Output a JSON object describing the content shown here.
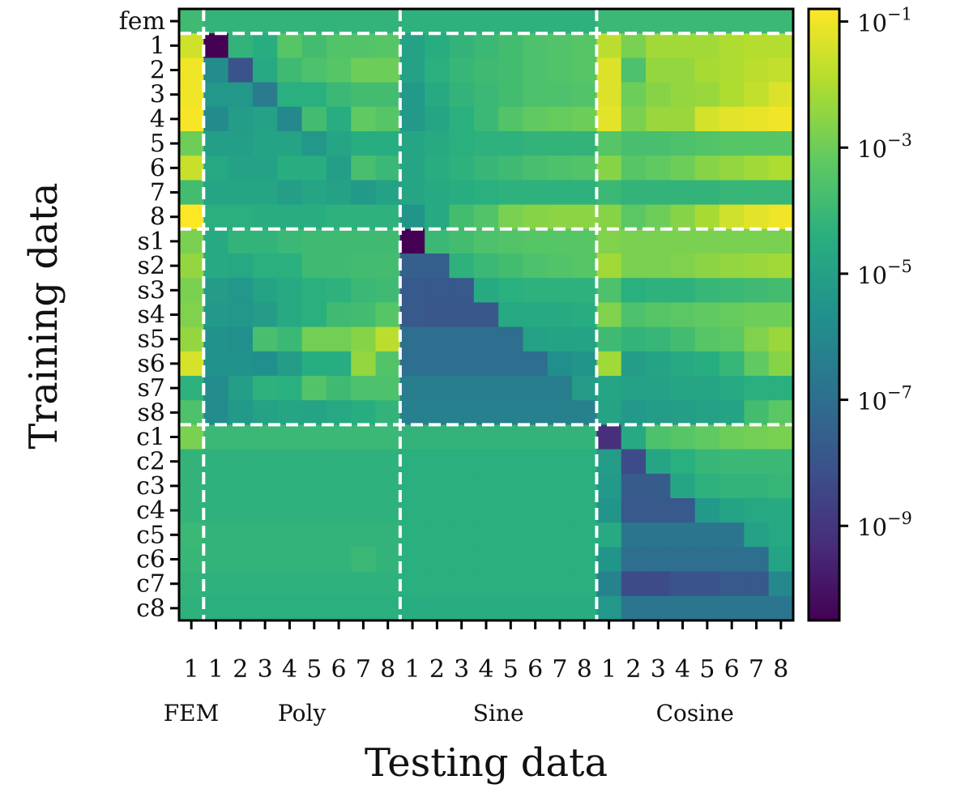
{
  "chart_data": {
    "type": "heatmap",
    "title": "",
    "xlabel": "Testing data",
    "ylabel": "Training data",
    "colormap": "viridis",
    "scale": "log10",
    "color_range_log10": [
      -10.5,
      -0.8
    ],
    "colorbar_ticks": [
      {
        "base": "10",
        "exp": "−1",
        "log": -1
      },
      {
        "base": "10",
        "exp": "−3",
        "log": -3
      },
      {
        "base": "10",
        "exp": "−5",
        "log": -5
      },
      {
        "base": "10",
        "exp": "−7",
        "log": -7
      },
      {
        "base": "10",
        "exp": "−9",
        "log": -9
      }
    ],
    "row_labels": [
      "fem",
      "1",
      "2",
      "3",
      "4",
      "5",
      "6",
      "7",
      "8",
      "s1",
      "s2",
      "s3",
      "s4",
      "s5",
      "s6",
      "s7",
      "s8",
      "c1",
      "c2",
      "c3",
      "c4",
      "c5",
      "c6",
      "c7",
      "c8"
    ],
    "col_labels": [
      "1",
      "1",
      "2",
      "3",
      "4",
      "5",
      "6",
      "7",
      "8",
      "1",
      "2",
      "3",
      "4",
      "5",
      "6",
      "7",
      "8",
      "1",
      "2",
      "3",
      "4",
      "5",
      "6",
      "7",
      "8"
    ],
    "groups": [
      "FEM",
      "Poly",
      "Sine",
      "Cosine"
    ],
    "matrix_log10": [
      [
        -3.9,
        -4.2,
        -4.2,
        -4.2,
        -4.2,
        -4.2,
        -4.2,
        -4.2,
        -4.2,
        -4.3,
        -4.3,
        -4.3,
        -4.3,
        -4.3,
        -4.3,
        -4.3,
        -4.3,
        -4.0,
        -4.0,
        -4.0,
        -4.0,
        -4.0,
        -4.0,
        -4.0,
        -4.0
      ],
      [
        -1.5,
        -10.5,
        -4.2,
        -4.5,
        -3.4,
        -3.8,
        -3.5,
        -3.5,
        -3.4,
        -5.0,
        -4.5,
        -4.2,
        -4.0,
        -3.8,
        -3.6,
        -3.5,
        -3.4,
        -1.8,
        -2.8,
        -2.2,
        -2.2,
        -2.2,
        -2.0,
        -1.9,
        -1.9
      ],
      [
        -1.0,
        -5.8,
        -8.0,
        -4.6,
        -3.9,
        -3.6,
        -3.4,
        -3.0,
        -3.0,
        -5.0,
        -4.4,
        -4.1,
        -3.9,
        -3.8,
        -3.6,
        -3.5,
        -3.4,
        -1.3,
        -3.6,
        -2.4,
        -2.4,
        -2.1,
        -2.0,
        -1.8,
        -1.7
      ],
      [
        -1.0,
        -5.4,
        -5.4,
        -6.5,
        -4.4,
        -4.4,
        -4.0,
        -3.8,
        -3.8,
        -5.3,
        -4.6,
        -4.2,
        -4.0,
        -3.8,
        -3.6,
        -3.6,
        -3.5,
        -1.3,
        -3.0,
        -2.6,
        -2.4,
        -2.3,
        -2.0,
        -1.7,
        -1.3
      ],
      [
        -0.9,
        -5.9,
        -5.2,
        -5.0,
        -6.0,
        -3.8,
        -4.5,
        -3.2,
        -3.4,
        -5.3,
        -4.8,
        -4.4,
        -4.0,
        -3.5,
        -3.2,
        -3.1,
        -3.0,
        -1.2,
        -2.8,
        -2.3,
        -2.3,
        -1.4,
        -1.2,
        -1.1,
        -1.0
      ],
      [
        -3.0,
        -5.1,
        -5.1,
        -4.9,
        -4.9,
        -5.4,
        -4.8,
        -4.5,
        -4.5,
        -4.8,
        -4.6,
        -4.4,
        -4.3,
        -4.3,
        -4.2,
        -4.2,
        -4.2,
        -3.4,
        -3.7,
        -3.7,
        -3.6,
        -3.5,
        -3.4,
        -3.4,
        -3.4
      ],
      [
        -1.6,
        -4.7,
        -5.0,
        -5.0,
        -4.5,
        -4.5,
        -5.1,
        -3.7,
        -4.0,
        -4.8,
        -4.5,
        -4.3,
        -4.1,
        -3.9,
        -3.7,
        -3.6,
        -3.5,
        -2.6,
        -3.4,
        -3.2,
        -3.0,
        -2.6,
        -2.4,
        -2.2,
        -2.0
      ],
      [
        -3.8,
        -4.8,
        -4.8,
        -4.8,
        -5.1,
        -4.8,
        -5.0,
        -5.3,
        -5.0,
        -4.8,
        -4.6,
        -4.5,
        -4.4,
        -4.3,
        -4.3,
        -4.3,
        -4.3,
        -4.0,
        -4.2,
        -4.2,
        -4.2,
        -4.2,
        -4.1,
        -4.1,
        -4.1
      ],
      [
        -0.8,
        -4.4,
        -4.4,
        -4.5,
        -4.5,
        -4.5,
        -4.3,
        -4.3,
        -4.3,
        -5.5,
        -4.6,
        -3.8,
        -3.5,
        -2.8,
        -2.6,
        -2.5,
        -2.5,
        -2.6,
        -3.3,
        -3.0,
        -2.6,
        -2.1,
        -1.5,
        -1.2,
        -1.0
      ],
      [
        -2.8,
        -4.6,
        -4.2,
        -4.2,
        -4.0,
        -3.9,
        -3.9,
        -3.9,
        -3.9,
        -10.5,
        -4.0,
        -3.8,
        -3.6,
        -3.5,
        -3.4,
        -3.4,
        -3.4,
        -2.7,
        -2.8,
        -2.8,
        -2.8,
        -2.8,
        -2.8,
        -2.8,
        -2.8
      ],
      [
        -2.4,
        -4.6,
        -4.7,
        -4.4,
        -4.4,
        -3.9,
        -3.9,
        -3.8,
        -3.8,
        -7.6,
        -7.6,
        -4.3,
        -4.0,
        -3.8,
        -3.6,
        -3.5,
        -3.4,
        -2.2,
        -2.8,
        -2.8,
        -2.7,
        -2.5,
        -2.4,
        -2.3,
        -2.2
      ],
      [
        -2.8,
        -5.2,
        -5.4,
        -4.9,
        -4.6,
        -4.4,
        -4.3,
        -4.0,
        -3.9,
        -7.8,
        -7.8,
        -7.8,
        -4.6,
        -4.4,
        -4.3,
        -4.3,
        -4.3,
        -3.6,
        -4.4,
        -4.3,
        -4.3,
        -4.1,
        -4.0,
        -3.9,
        -3.8
      ],
      [
        -2.7,
        -5.3,
        -5.4,
        -5.2,
        -4.6,
        -4.4,
        -3.9,
        -3.8,
        -3.4,
        -7.8,
        -7.9,
        -7.9,
        -7.9,
        -4.7,
        -4.6,
        -4.6,
        -4.5,
        -2.7,
        -3.6,
        -3.4,
        -3.3,
        -3.2,
        -3.1,
        -3.0,
        -3.0
      ],
      [
        -2.4,
        -5.6,
        -5.7,
        -3.7,
        -4.0,
        -2.9,
        -2.9,
        -2.6,
        -1.8,
        -7.0,
        -7.0,
        -7.0,
        -7.0,
        -7.0,
        -5.0,
        -4.9,
        -4.9,
        -3.9,
        -4.2,
        -4.1,
        -3.8,
        -3.4,
        -3.3,
        -2.7,
        -2.3
      ],
      [
        -1.4,
        -5.6,
        -5.6,
        -5.7,
        -5.2,
        -4.5,
        -4.5,
        -2.4,
        -3.5,
        -7.0,
        -7.0,
        -7.0,
        -7.0,
        -7.0,
        -7.0,
        -5.7,
        -5.5,
        -2.2,
        -5.2,
        -4.9,
        -4.6,
        -4.5,
        -4.1,
        -3.2,
        -2.6
      ],
      [
        -4.3,
        -5.8,
        -5.1,
        -4.3,
        -4.4,
        -3.5,
        -3.9,
        -3.6,
        -3.6,
        -6.4,
        -6.4,
        -6.4,
        -6.4,
        -6.4,
        -6.4,
        -6.4,
        -5.2,
        -4.8,
        -5.0,
        -5.0,
        -4.8,
        -4.8,
        -4.6,
        -4.4,
        -4.4
      ],
      [
        -3.6,
        -5.8,
        -5.3,
        -5.0,
        -4.8,
        -4.9,
        -4.7,
        -4.5,
        -4.2,
        -6.3,
        -6.3,
        -6.3,
        -6.3,
        -6.3,
        -6.3,
        -6.3,
        -6.3,
        -4.9,
        -5.3,
        -5.2,
        -5.1,
        -5.0,
        -4.9,
        -3.8,
        -3.3
      ],
      [
        -2.8,
        -4.0,
        -4.0,
        -4.0,
        -4.0,
        -4.0,
        -4.0,
        -4.0,
        -4.0,
        -4.2,
        -4.2,
        -4.2,
        -4.2,
        -4.2,
        -4.2,
        -4.2,
        -4.2,
        -9.2,
        -4.6,
        -3.6,
        -3.4,
        -3.2,
        -3.0,
        -2.9,
        -2.8
      ],
      [
        -4.2,
        -4.3,
        -4.3,
        -4.3,
        -4.3,
        -4.3,
        -4.3,
        -4.3,
        -4.3,
        -4.4,
        -4.4,
        -4.4,
        -4.4,
        -4.4,
        -4.4,
        -4.4,
        -4.4,
        -5.2,
        -8.3,
        -4.8,
        -4.4,
        -4.1,
        -4.0,
        -4.0,
        -4.0
      ],
      [
        -4.2,
        -4.3,
        -4.3,
        -4.3,
        -4.3,
        -4.3,
        -4.3,
        -4.3,
        -4.3,
        -4.4,
        -4.4,
        -4.4,
        -4.4,
        -4.4,
        -4.4,
        -4.4,
        -4.4,
        -5.3,
        -7.7,
        -7.7,
        -4.8,
        -4.3,
        -4.2,
        -4.2,
        -4.1
      ],
      [
        -4.2,
        -4.3,
        -4.3,
        -4.3,
        -4.3,
        -4.3,
        -4.3,
        -4.3,
        -4.3,
        -4.4,
        -4.4,
        -4.4,
        -4.4,
        -4.4,
        -4.4,
        -4.4,
        -4.4,
        -5.5,
        -7.8,
        -7.8,
        -7.8,
        -5.3,
        -4.9,
        -4.7,
        -4.6
      ],
      [
        -4.0,
        -4.2,
        -4.2,
        -4.2,
        -4.2,
        -4.2,
        -4.2,
        -4.2,
        -4.2,
        -4.4,
        -4.4,
        -4.4,
        -4.4,
        -4.4,
        -4.4,
        -4.4,
        -4.4,
        -4.6,
        -6.7,
        -6.7,
        -6.7,
        -6.7,
        -6.7,
        -5.0,
        -4.7
      ],
      [
        -4.1,
        -4.2,
        -4.2,
        -4.2,
        -4.2,
        -4.2,
        -4.2,
        -4.0,
        -4.2,
        -4.4,
        -4.4,
        -4.4,
        -4.4,
        -4.4,
        -4.4,
        -4.4,
        -4.4,
        -5.5,
        -7.0,
        -7.0,
        -7.0,
        -7.0,
        -7.0,
        -7.0,
        -4.9
      ],
      [
        -4.2,
        -4.3,
        -4.3,
        -4.3,
        -4.3,
        -4.3,
        -4.3,
        -4.3,
        -4.3,
        -4.4,
        -4.4,
        -4.4,
        -4.4,
        -4.4,
        -4.4,
        -4.4,
        -4.4,
        -6.2,
        -8.3,
        -8.3,
        -8.0,
        -8.0,
        -7.8,
        -7.8,
        -6.0
      ],
      [
        -4.3,
        -4.4,
        -4.4,
        -4.4,
        -4.4,
        -4.4,
        -4.4,
        -4.4,
        -4.4,
        -4.5,
        -4.5,
        -4.5,
        -4.5,
        -4.5,
        -4.5,
        -4.5,
        -4.5,
        -5.4,
        -6.7,
        -6.7,
        -6.7,
        -6.7,
        -6.7,
        -6.7,
        -6.7
      ]
    ]
  }
}
